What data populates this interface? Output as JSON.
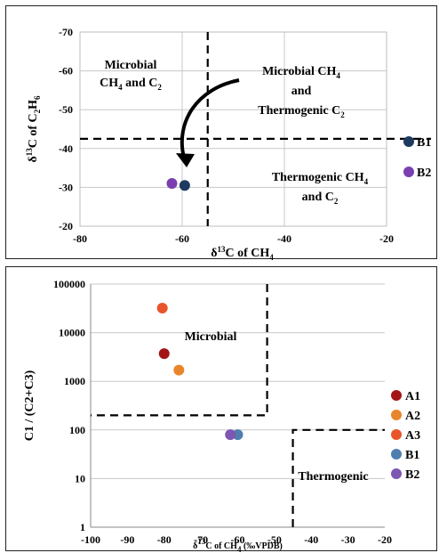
{
  "chart_data": [
    {
      "type": "scatter",
      "xlabel": "δ13C of CH4",
      "ylabel": "δ13C of C2H6",
      "xlim": [
        -80,
        -20
      ],
      "ylim": [
        -70,
        -20
      ],
      "y_reversed": true,
      "x_ticks": [
        "-80",
        "-60",
        "-40",
        "-20"
      ],
      "y_ticks": [
        "-70",
        "-60",
        "-50",
        "-40",
        "-30",
        "-20"
      ],
      "grid": true,
      "legend_position": "right",
      "series": [
        {
          "name": "B1",
          "color": "#1f3a5f",
          "points": [
            {
              "x": -59.5,
              "y": -30.5
            }
          ]
        },
        {
          "name": "B2",
          "color": "#7a3fb0",
          "points": [
            {
              "x": -62,
              "y": -31
            }
          ]
        }
      ],
      "boundaries": {
        "x": -55,
        "y": -42.5
      },
      "regions": [
        {
          "lines": [
            "Microbial",
            "CH4 and C2"
          ]
        },
        {
          "lines": [
            "Microbial CH4",
            "and",
            "Thermogenic C2"
          ]
        },
        {
          "lines": [
            "Thermogenic CH4",
            "and  C2"
          ]
        }
      ]
    },
    {
      "type": "scatter",
      "xlabel": "δ13C of CH4 (‰VPDB)",
      "ylabel": "C1 / (C2+C3)",
      "xlim": [
        -100,
        -20
      ],
      "ylim": [
        1,
        100000
      ],
      "y_scale": "log",
      "x_ticks": [
        "-100",
        "-90",
        "-80",
        "-70",
        "-60",
        "-50",
        "-40",
        "-30",
        "-20"
      ],
      "y_ticks": [
        "1",
        "10",
        "100",
        "1000",
        "10000",
        "100000"
      ],
      "grid": true,
      "legend_position": "right",
      "series": [
        {
          "name": "A1",
          "color": "#a31515",
          "points": [
            {
              "x": -80,
              "y": 3700
            }
          ]
        },
        {
          "name": "A2",
          "color": "#e8852b",
          "points": [
            {
              "x": -76,
              "y": 1700
            }
          ]
        },
        {
          "name": "A3",
          "color": "#e8552b",
          "points": [
            {
              "x": -80.5,
              "y": 32000
            }
          ]
        },
        {
          "name": "B1",
          "color": "#4f7fae",
          "points": [
            {
              "x": -60,
              "y": 80
            }
          ]
        },
        {
          "name": "B2",
          "color": "#7e57b3",
          "points": [
            {
              "x": -62,
              "y": 80
            }
          ]
        }
      ],
      "regions": [
        {
          "lines": [
            "Microbial"
          ]
        },
        {
          "lines": [
            "Thermogenic"
          ]
        }
      ]
    }
  ]
}
